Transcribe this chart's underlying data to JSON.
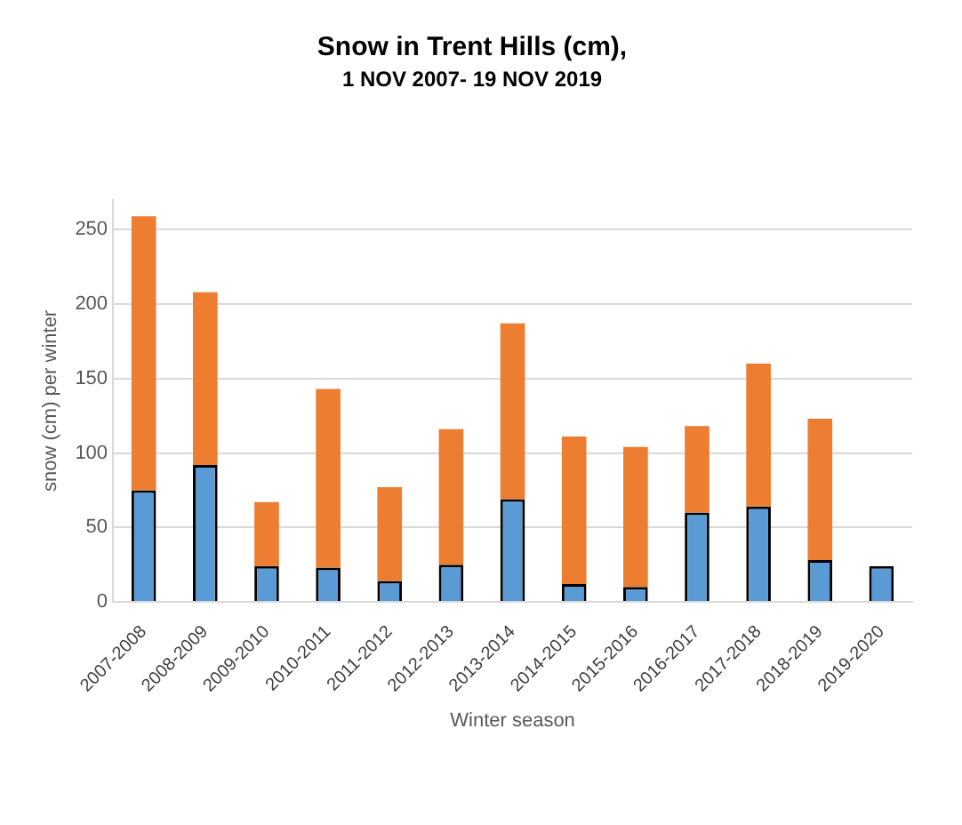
{
  "chart_data": {
    "type": "bar",
    "title": "Snow in Trent Hills (cm),",
    "subtitle": "1 NOV 2007- 19 NOV 2019",
    "xlabel": "Winter season",
    "ylabel": "snow (cm) per winter",
    "categories": [
      "2007-2008",
      "2008-2009",
      "2009-2010",
      "2010-2011",
      "2011-2012",
      "2012-2013",
      "2013-2014",
      "2014-2015",
      "2015-2016",
      "2016-2017",
      "2017-2018",
      "2018-2019",
      "2019-2020"
    ],
    "stacked": true,
    "series": [
      {
        "color": "#5b9bd5",
        "values": [
          75,
          92,
          24,
          23,
          14,
          25,
          69,
          12,
          10,
          60,
          64,
          28,
          24
        ]
      },
      {
        "color": "#ed7d31",
        "values": [
          184,
          116,
          43,
          120,
          63,
          91,
          118,
          99,
          94,
          58,
          96,
          95,
          null
        ]
      }
    ],
    "ylim": [
      0,
      270
    ],
    "yticks": [
      0,
      50,
      100,
      150,
      200,
      250
    ],
    "grid": "y"
  }
}
